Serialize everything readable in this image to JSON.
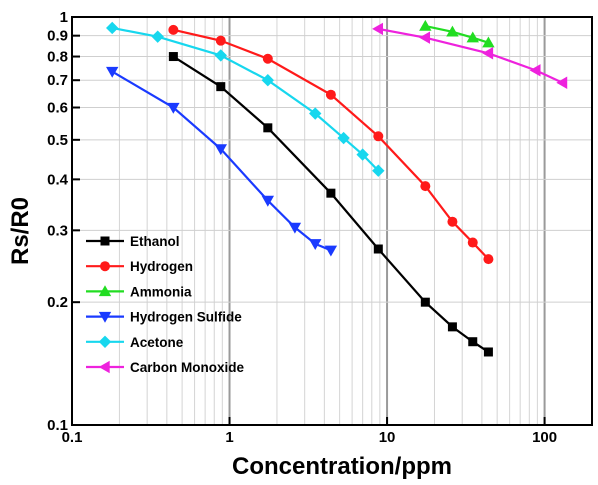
{
  "chart_data": {
    "type": "line",
    "xlabel": "Concentration/ppm",
    "ylabel": "Rs/R0",
    "xscale": "log",
    "yscale": "log",
    "xlim": [
      0.1,
      200
    ],
    "ylim": [
      0.1,
      1
    ],
    "xticks": [
      {
        "value": 0.1,
        "label": "0.1"
      },
      {
        "value": 1,
        "label": "1"
      },
      {
        "value": 10,
        "label": "10"
      },
      {
        "value": 100,
        "label": "100"
      }
    ],
    "yticks": [
      {
        "value": 0.1,
        "label": "0.1"
      },
      {
        "value": 0.2,
        "label": "0.2"
      },
      {
        "value": 0.3,
        "label": "0.3"
      },
      {
        "value": 0.4,
        "label": "0.4"
      },
      {
        "value": 0.5,
        "label": "0.5"
      },
      {
        "value": 0.6,
        "label": "0.6"
      },
      {
        "value": 0.7,
        "label": "0.7"
      },
      {
        "value": 0.8,
        "label": "0.8"
      },
      {
        "value": 0.9,
        "label": "0.9"
      },
      {
        "value": 1,
        "label": "1"
      }
    ],
    "grid": true,
    "legend_position": "bottom-left",
    "series": [
      {
        "name": "Ethanol",
        "color": "#000000",
        "marker": "square",
        "x": [
          0.44,
          0.88,
          1.75,
          4.4,
          8.8,
          17.5,
          26,
          35,
          44
        ],
        "y": [
          0.8,
          0.675,
          0.535,
          0.37,
          0.27,
          0.2,
          0.174,
          0.16,
          0.151
        ]
      },
      {
        "name": "Hydrogen",
        "color": "#ff1a1a",
        "marker": "circle",
        "x": [
          0.44,
          0.88,
          1.75,
          4.4,
          8.8,
          17.5,
          26,
          35,
          44
        ],
        "y": [
          0.93,
          0.875,
          0.79,
          0.645,
          0.51,
          0.385,
          0.315,
          0.28,
          0.255
        ]
      },
      {
        "name": "Ammonia",
        "color": "#22dd22",
        "marker": "triangle-up",
        "x": [
          17.5,
          26,
          35,
          44
        ],
        "y": [
          0.95,
          0.92,
          0.89,
          0.865
        ]
      },
      {
        "name": "Hydrogen Sulfide",
        "color": "#1a3aff",
        "marker": "triangle-down",
        "x": [
          0.18,
          0.44,
          0.88,
          1.75,
          2.6,
          3.5,
          4.4
        ],
        "y": [
          0.735,
          0.6,
          0.475,
          0.355,
          0.305,
          0.278,
          0.268
        ]
      },
      {
        "name": "Acetone",
        "color": "#17d7ee",
        "marker": "diamond",
        "x": [
          0.18,
          0.35,
          0.88,
          1.75,
          3.5,
          5.3,
          7,
          8.8
        ],
        "y": [
          0.94,
          0.895,
          0.805,
          0.7,
          0.58,
          0.505,
          0.46,
          0.42
        ]
      },
      {
        "name": "Carbon Monoxide",
        "color": "#ee22dd",
        "marker": "triangle-left",
        "x": [
          8.8,
          17.5,
          44,
          88,
          130
        ],
        "y": [
          0.935,
          0.89,
          0.815,
          0.74,
          0.69
        ]
      }
    ]
  }
}
